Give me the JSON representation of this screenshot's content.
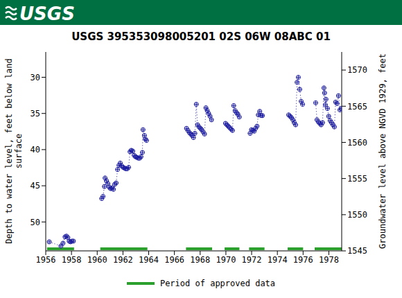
{
  "header_logo": "USGS",
  "chart_data": {
    "type": "scatter",
    "title": "USGS 395353098005201 02S 06W 08ABC 01",
    "y_label": "Depth to water level, feet below land surface",
    "y2_label": "Groundwater level above NGVD 1929, feet",
    "xlim": [
      1956,
      1979
    ],
    "xticks": [
      1956,
      1958,
      1960,
      1962,
      1964,
      1966,
      1968,
      1970,
      1972,
      1974,
      1976,
      1978
    ],
    "ylim": [
      54,
      26.5
    ],
    "yticks": [
      30,
      35,
      40,
      45,
      50
    ],
    "y2lim": [
      1545,
      1572.5
    ],
    "y2ticks": [
      1545,
      1550,
      1555,
      1560,
      1565,
      1570
    ],
    "grid": false,
    "x": [
      1956.27,
      1957.18,
      1957.34,
      1957.5,
      1957.61,
      1957.72,
      1957.82,
      1957.93,
      1958.04,
      1958.15,
      1960.35,
      1960.45,
      1960.56,
      1960.61,
      1960.72,
      1960.83,
      1960.94,
      1961.04,
      1961.15,
      1961.26,
      1961.36,
      1961.47,
      1961.58,
      1961.69,
      1961.79,
      1961.9,
      1962.01,
      1962.12,
      1962.22,
      1962.33,
      1962.44,
      1962.55,
      1962.65,
      1962.76,
      1962.87,
      1962.97,
      1963.08,
      1963.19,
      1963.3,
      1963.4,
      1963.51,
      1963.56,
      1963.67,
      1963.73,
      1963.83,
      1966.94,
      1967.05,
      1967.16,
      1967.27,
      1967.37,
      1967.48,
      1967.59,
      1967.7,
      1967.8,
      1967.91,
      1968.02,
      1968.12,
      1968.23,
      1968.34,
      1968.45,
      1968.55,
      1968.66,
      1968.77,
      1968.88,
      1969.97,
      1970.08,
      1970.18,
      1970.29,
      1970.4,
      1970.51,
      1970.61,
      1970.72,
      1970.83,
      1970.93,
      1971.04,
      1971.88,
      1971.99,
      1972.09,
      1972.2,
      1972.31,
      1972.42,
      1972.52,
      1972.63,
      1972.74,
      1972.84,
      1974.88,
      1974.99,
      1975.1,
      1975.21,
      1975.31,
      1975.42,
      1975.53,
      1975.63,
      1975.74,
      1975.85,
      1975.96,
      1976.98,
      1977.08,
      1977.19,
      1977.3,
      1977.4,
      1977.51,
      1977.62,
      1977.67,
      1977.73,
      1977.78,
      1977.89,
      1977.99,
      1978.1,
      1978.21,
      1978.32,
      1978.43,
      1978.53,
      1978.64,
      1978.75,
      1978.86,
      1978.96
    ],
    "series": [
      {
        "name": "Depth to water level",
        "color": "#1c1ca0",
        "marker": "circle-plus",
        "line_style": "dotted",
        "values": [
          52.75,
          53.33,
          52.94,
          52.06,
          51.96,
          52.16,
          52.65,
          52.75,
          52.65,
          52.65,
          46.76,
          46.47,
          45.1,
          43.92,
          44.31,
          44.71,
          45.2,
          45.39,
          45.29,
          45.49,
          44.8,
          44.61,
          42.75,
          42.16,
          41.86,
          42.25,
          42.45,
          42.55,
          42.65,
          42.65,
          42.45,
          40.29,
          40.1,
          40.2,
          40.78,
          40.98,
          41.08,
          41.18,
          41.18,
          40.98,
          40.39,
          37.25,
          38.04,
          38.53,
          38.73,
          37.06,
          37.35,
          37.65,
          37.84,
          38.04,
          38.33,
          37.75,
          33.73,
          36.57,
          36.86,
          37.06,
          37.25,
          37.55,
          37.84,
          34.22,
          34.61,
          35.0,
          35.39,
          35.88,
          36.37,
          36.57,
          36.76,
          36.96,
          37.16,
          37.35,
          33.92,
          34.61,
          34.9,
          35.1,
          35.49,
          37.75,
          37.25,
          37.35,
          37.45,
          37.06,
          36.76,
          35.2,
          34.71,
          35.29,
          35.29,
          35.2,
          35.39,
          35.59,
          35.88,
          36.27,
          36.57,
          30.69,
          30.0,
          31.67,
          33.33,
          33.73,
          33.53,
          35.88,
          36.18,
          36.37,
          36.57,
          36.27,
          31.47,
          32.16,
          33.82,
          33.04,
          34.31,
          35.39,
          35.98,
          36.27,
          36.57,
          36.86,
          33.43,
          33.63,
          32.55,
          34.51,
          34.31
        ]
      }
    ],
    "approved": {
      "name": "Period of approved data",
      "color": "#2ca02c",
      "ranges": [
        [
          1956.1,
          1958.2
        ],
        [
          1960.24,
          1963.9
        ],
        [
          1966.9,
          1968.93
        ],
        [
          1969.9,
          1971.05
        ],
        [
          1971.8,
          1973.0
        ],
        [
          1974.8,
          1976.0
        ],
        [
          1976.9,
          1979
        ]
      ]
    }
  }
}
